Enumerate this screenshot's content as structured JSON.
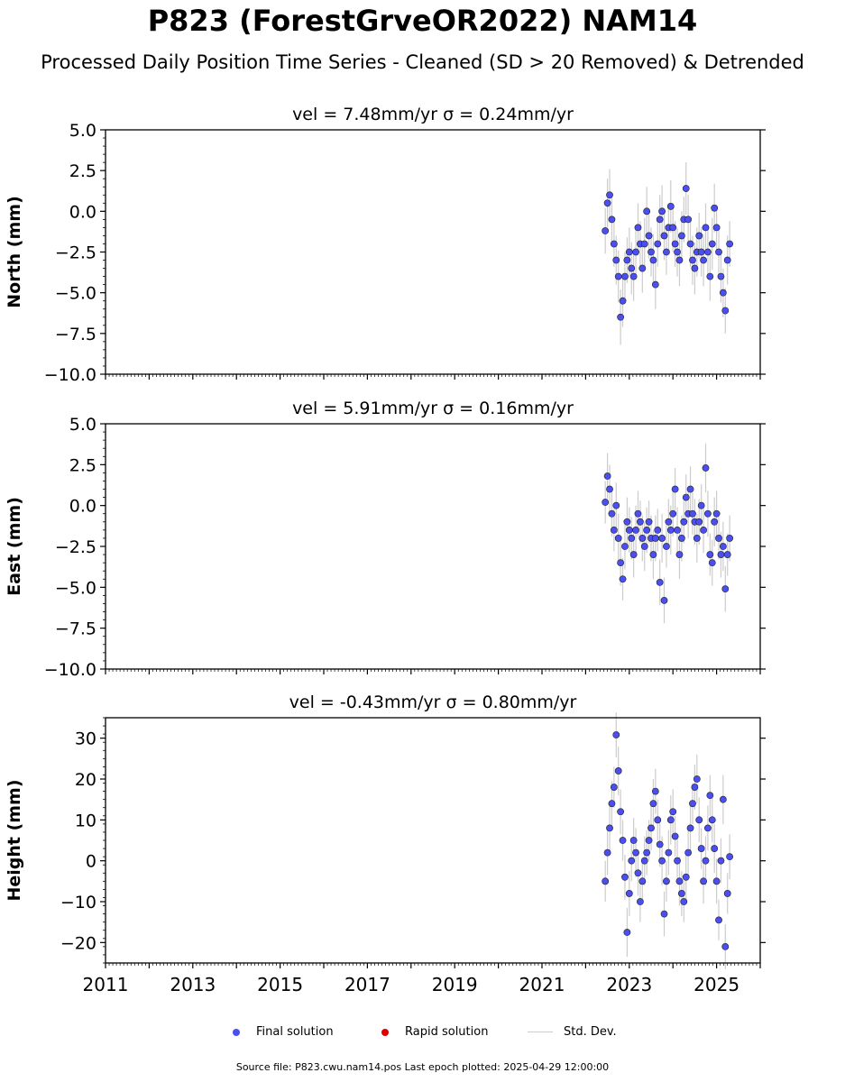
{
  "title": "P823 (ForestGrveOR2022) NAM14",
  "subtitle": "Processed Daily Position Time Series - Cleaned (SD > 20 Removed) & Detrended",
  "legend": {
    "final": "Final solution",
    "rapid": "Rapid solution",
    "stddev": "Std. Dev."
  },
  "footer": "Source file: P823.cwu.nam14.pos  Last epoch plotted: 2025-04-29 12:00:00",
  "colors": {
    "final": "#4b4ef0",
    "rapid": "#dd0000",
    "stddev": "#cccccc"
  },
  "chart_data": [
    {
      "type": "scatter",
      "panel": "north",
      "title": "vel = 7.48mm/yr   σ = 0.24mm/yr",
      "ylabel": "North (mm)",
      "xlim": [
        2011,
        2026
      ],
      "ylim": [
        -10,
        5
      ],
      "yticks": [
        5.0,
        2.5,
        0.0,
        -2.5,
        -5.0,
        -7.5,
        -10.0
      ],
      "ytick_labels": [
        "5.0",
        "2.5",
        "0.0",
        "−2.5",
        "−5.0",
        "−7.5",
        "−10.0"
      ],
      "xticks": [
        2011,
        2013,
        2015,
        2017,
        2019,
        2021,
        2023,
        2025
      ],
      "show_xtick_labels": false,
      "series": [
        {
          "name": "Final solution",
          "x": [
            2022.45,
            2022.5,
            2022.55,
            2022.6,
            2022.65,
            2022.7,
            2022.75,
            2022.8,
            2022.85,
            2022.9,
            2022.95,
            2023.0,
            2023.05,
            2023.1,
            2023.15,
            2023.2,
            2023.25,
            2023.3,
            2023.35,
            2023.4,
            2023.45,
            2023.5,
            2023.55,
            2023.6,
            2023.65,
            2023.7,
            2023.75,
            2023.8,
            2023.85,
            2023.9,
            2023.95,
            2024.0,
            2024.05,
            2024.1,
            2024.15,
            2024.2,
            2024.25,
            2024.3,
            2024.35,
            2024.4,
            2024.45,
            2024.5,
            2024.55,
            2024.6,
            2024.65,
            2024.7,
            2024.75,
            2024.8,
            2024.85,
            2024.9,
            2024.95,
            2025.0,
            2025.05,
            2025.1,
            2025.15,
            2025.2,
            2025.25,
            2025.3
          ],
          "y": [
            -1.2,
            0.5,
            1.0,
            -0.5,
            -2.0,
            -3.0,
            -4.0,
            -6.5,
            -5.5,
            -4.0,
            -3.0,
            -2.5,
            -3.5,
            -4.0,
            -2.5,
            -1.0,
            -2.0,
            -3.5,
            -2.0,
            0.0,
            -1.5,
            -2.5,
            -3.0,
            -4.5,
            -2.0,
            -0.5,
            0.0,
            -1.5,
            -2.5,
            -1.0,
            0.3,
            -1.0,
            -2.0,
            -2.5,
            -3.0,
            -1.5,
            -0.5,
            1.4,
            -0.5,
            -2.0,
            -3.0,
            -3.5,
            -2.5,
            -1.5,
            -2.5,
            -3.0,
            -1.0,
            -2.5,
            -4.0,
            -2.0,
            0.2,
            -1.0,
            -2.5,
            -4.0,
            -5.0,
            -6.1,
            -3.0,
            -2.0
          ],
          "err": [
            1.4,
            1.5,
            1.6,
            1.5,
            1.4,
            1.5,
            1.6,
            1.7,
            1.6,
            1.5,
            1.4,
            1.5,
            1.6,
            1.5,
            1.4,
            1.5,
            1.4,
            1.5,
            1.6,
            1.5,
            1.4,
            1.5,
            1.6,
            1.5,
            1.4,
            1.5,
            1.6,
            1.5,
            1.4,
            1.5,
            1.6,
            1.5,
            1.4,
            1.5,
            1.6,
            1.5,
            1.4,
            1.6,
            1.5,
            1.4,
            1.5,
            1.6,
            1.5,
            1.4,
            1.5,
            1.6,
            1.5,
            1.4,
            1.5,
            1.6,
            1.5,
            1.4,
            1.5,
            1.6,
            1.5,
            1.4,
            1.5,
            1.4
          ]
        }
      ]
    },
    {
      "type": "scatter",
      "panel": "east",
      "title": "vel = 5.91mm/yr   σ = 0.16mm/yr",
      "ylabel": "East (mm)",
      "xlim": [
        2011,
        2026
      ],
      "ylim": [
        -10,
        5
      ],
      "yticks": [
        5.0,
        2.5,
        0.0,
        -2.5,
        -5.0,
        -7.5,
        -10.0
      ],
      "ytick_labels": [
        "5.0",
        "2.5",
        "0.0",
        "−2.5",
        "−5.0",
        "−7.5",
        "−10.0"
      ],
      "xticks": [
        2011,
        2013,
        2015,
        2017,
        2019,
        2021,
        2023,
        2025
      ],
      "show_xtick_labels": false,
      "series": [
        {
          "name": "Final solution",
          "x": [
            2022.45,
            2022.5,
            2022.55,
            2022.6,
            2022.65,
            2022.7,
            2022.75,
            2022.8,
            2022.85,
            2022.9,
            2022.95,
            2023.0,
            2023.05,
            2023.1,
            2023.15,
            2023.2,
            2023.25,
            2023.3,
            2023.35,
            2023.4,
            2023.45,
            2023.5,
            2023.55,
            2023.6,
            2023.65,
            2023.7,
            2023.75,
            2023.8,
            2023.85,
            2023.9,
            2023.95,
            2024.0,
            2024.05,
            2024.1,
            2024.15,
            2024.2,
            2024.25,
            2024.3,
            2024.35,
            2024.4,
            2024.45,
            2024.5,
            2024.55,
            2024.6,
            2024.65,
            2024.7,
            2024.75,
            2024.8,
            2024.85,
            2024.9,
            2024.95,
            2025.0,
            2025.05,
            2025.1,
            2025.15,
            2025.2,
            2025.25,
            2025.3
          ],
          "y": [
            0.2,
            1.8,
            1.0,
            -0.5,
            -1.5,
            0.0,
            -2.0,
            -3.5,
            -4.5,
            -2.5,
            -1.0,
            -1.5,
            -2.0,
            -3.0,
            -1.5,
            -0.5,
            -1.0,
            -2.0,
            -2.5,
            -1.5,
            -1.0,
            -2.0,
            -3.0,
            -2.0,
            -1.5,
            -4.7,
            -2.0,
            -5.8,
            -2.5,
            -1.0,
            -1.5,
            -0.5,
            1.0,
            -1.5,
            -3.0,
            -2.0,
            -1.0,
            0.5,
            -0.5,
            1.0,
            -0.5,
            -1.0,
            -2.0,
            -1.0,
            0.0,
            -1.5,
            2.3,
            -0.5,
            -3.0,
            -3.5,
            -1.0,
            -0.5,
            -2.0,
            -3.0,
            -2.5,
            -5.1,
            -3.0,
            -2.0
          ],
          "err": [
            1.3,
            1.4,
            1.5,
            1.4,
            1.3,
            1.4,
            1.5,
            1.4,
            1.3,
            1.4,
            1.5,
            1.4,
            1.3,
            1.4,
            1.5,
            1.4,
            1.3,
            1.4,
            1.5,
            1.4,
            1.3,
            1.4,
            1.5,
            1.4,
            1.3,
            1.4,
            1.5,
            1.4,
            1.3,
            1.4,
            1.5,
            1.4,
            1.3,
            1.4,
            1.5,
            1.4,
            1.3,
            1.4,
            1.5,
            1.4,
            1.3,
            1.4,
            1.5,
            1.4,
            1.3,
            1.4,
            1.5,
            1.4,
            1.3,
            1.4,
            1.5,
            1.4,
            1.3,
            1.4,
            1.5,
            1.4,
            1.3,
            1.4
          ]
        }
      ]
    },
    {
      "type": "scatter",
      "panel": "height",
      "title": "vel = -0.43mm/yr   σ = 0.80mm/yr",
      "ylabel": "Height (mm)",
      "xlim": [
        2011,
        2026
      ],
      "ylim": [
        -25,
        35
      ],
      "yticks": [
        30,
        20,
        10,
        0,
        -10,
        -20
      ],
      "ytick_labels": [
        "30",
        "20",
        "10",
        "0",
        "−10",
        "−20"
      ],
      "xticks": [
        2011,
        2013,
        2015,
        2017,
        2019,
        2021,
        2023,
        2025
      ],
      "xtick_labels": [
        "2011",
        "2013",
        "2015",
        "2017",
        "2019",
        "2021",
        "2023",
        "2025"
      ],
      "show_xtick_labels": true,
      "series": [
        {
          "name": "Final solution",
          "x": [
            2022.45,
            2022.5,
            2022.55,
            2022.6,
            2022.65,
            2022.7,
            2022.75,
            2022.8,
            2022.85,
            2022.9,
            2022.95,
            2023.0,
            2023.05,
            2023.1,
            2023.15,
            2023.2,
            2023.25,
            2023.3,
            2023.35,
            2023.4,
            2023.45,
            2023.5,
            2023.55,
            2023.6,
            2023.65,
            2023.7,
            2023.75,
            2023.8,
            2023.85,
            2023.9,
            2023.95,
            2024.0,
            2024.05,
            2024.1,
            2024.15,
            2024.2,
            2024.25,
            2024.3,
            2024.35,
            2024.4,
            2024.45,
            2024.5,
            2024.55,
            2024.6,
            2024.65,
            2024.7,
            2024.75,
            2024.8,
            2024.85,
            2024.9,
            2024.95,
            2025.0,
            2025.05,
            2025.1,
            2025.15,
            2025.2,
            2025.25,
            2025.3
          ],
          "y": [
            -5.0,
            2.0,
            8.0,
            14.0,
            18.0,
            30.8,
            22.0,
            12.0,
            5.0,
            -4.0,
            -17.5,
            -8.0,
            0.0,
            5.0,
            2.0,
            -3.0,
            -10.0,
            -5.0,
            0.0,
            2.0,
            5.0,
            8.0,
            14.0,
            17.0,
            10.0,
            4.0,
            0.0,
            -13.0,
            -5.0,
            2.0,
            10.0,
            12.0,
            6.0,
            0.0,
            -5.0,
            -8.0,
            -10.0,
            -4.0,
            2.0,
            8.0,
            14.0,
            18.0,
            20.0,
            10.0,
            3.0,
            -5.0,
            0.0,
            8.0,
            16.0,
            10.0,
            3.0,
            -5.0,
            -14.5,
            0.0,
            15.0,
            -21.0,
            -8.0,
            1.0
          ],
          "err": [
            5.0,
            5.5,
            6.0,
            5.5,
            5.0,
            5.5,
            6.0,
            5.5,
            5.0,
            5.5,
            6.0,
            5.5,
            5.0,
            5.5,
            6.0,
            5.5,
            5.0,
            5.5,
            6.0,
            5.5,
            5.0,
            5.5,
            6.0,
            5.5,
            5.0,
            5.5,
            6.0,
            5.5,
            5.0,
            5.5,
            6.0,
            5.5,
            5.0,
            5.5,
            6.0,
            5.5,
            5.0,
            5.5,
            6.0,
            5.5,
            5.0,
            5.5,
            6.0,
            5.5,
            5.0,
            5.5,
            6.0,
            5.5,
            5.0,
            5.5,
            6.0,
            5.5,
            5.0,
            5.5,
            6.0,
            5.5,
            5.0,
            5.5
          ]
        }
      ]
    }
  ]
}
